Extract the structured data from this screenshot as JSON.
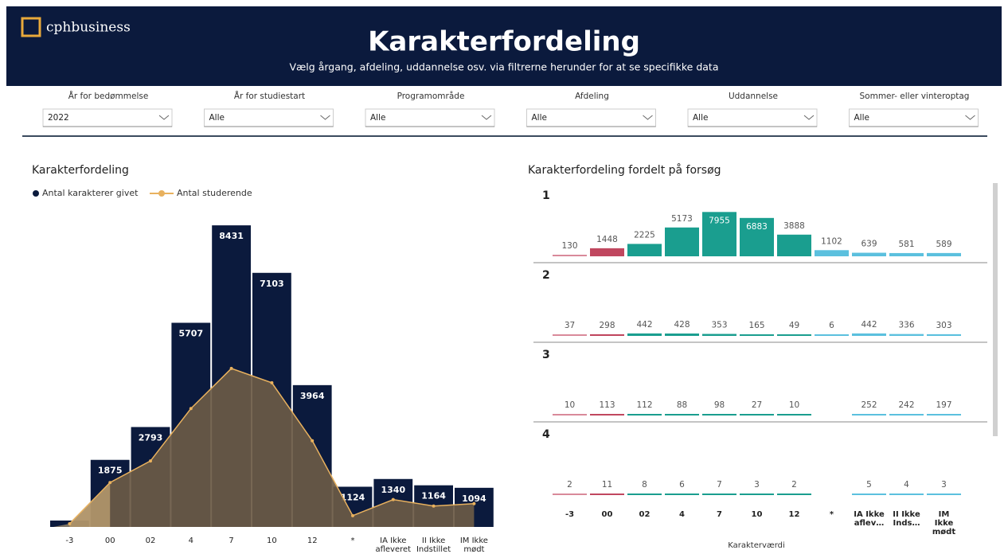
{
  "header": {
    "logo": "cphbusiness",
    "title": "Karakterfordeling",
    "subtitle": "Vælg årgang, afdeling, uddannelse osv. via filtrerne herunder for at se specifikke data"
  },
  "filters": [
    {
      "label": "År for bedømmelse",
      "value": "2022"
    },
    {
      "label": "År for studiestart",
      "value": "Alle"
    },
    {
      "label": "Programområde",
      "value": "Alle"
    },
    {
      "label": "Afdeling",
      "value": "Alle"
    },
    {
      "label": "Uddannelse",
      "value": "Alle"
    },
    {
      "label": "Sommer- eller vinteroptag",
      "value": "Alle"
    }
  ],
  "chart_data": [
    {
      "type": "bar-area",
      "title": "Karakterfordeling",
      "categories": [
        "-3",
        "00",
        "02",
        "4",
        "7",
        "10",
        "12",
        "*",
        "IA Ikke afleveret",
        "II Ikke Indstillet",
        "IM Ikke mødt"
      ],
      "ylim": [
        0,
        8500
      ],
      "series": [
        {
          "name": "Antal karakterer givet",
          "color": "#0b1a3d",
          "values": [
            179,
            1875,
            2793,
            5707,
            8431,
            7103,
            3964,
            1124,
            1340,
            1164,
            1094
          ],
          "value_labels": [
            null,
            "1875",
            "2793",
            "5707",
            "8431",
            "7103",
            "3964",
            "1124",
            "1340",
            "1164",
            "1094"
          ]
        },
        {
          "name": "Antal studerende",
          "color": "#e8b15e",
          "fill": "#6b5a45",
          "values": [
            90,
            1240,
            1845,
            3310,
            4430,
            4030,
            2410,
            315,
            765,
            585,
            650
          ]
        }
      ]
    },
    {
      "type": "small-multiple-bar",
      "title": "Karakterfordeling fordelt på forsøg",
      "x_label": "Karakterværdi",
      "categories": [
        "-3",
        "00",
        "02",
        "4",
        "7",
        "10",
        "12",
        "*",
        "IA Ikke aflev…",
        "II Ikke Inds…",
        "IM Ikke mødt"
      ],
      "colors": [
        "#d98a9a",
        "#c0475f",
        "#1a9e8f",
        "#1a9e8f",
        "#1a9e8f",
        "#1a9e8f",
        "#1a9e8f",
        "#5bc0de",
        "#5bc0de",
        "#5bc0de",
        "#5bc0de"
      ],
      "ylim": [
        0,
        8000
      ],
      "panels": [
        {
          "name": "1",
          "values": [
            130,
            1448,
            2225,
            5173,
            7955,
            6883,
            3888,
            1102,
            639,
            581,
            589
          ]
        },
        {
          "name": "2",
          "values": [
            37,
            298,
            442,
            428,
            353,
            165,
            49,
            6,
            442,
            336,
            303
          ]
        },
        {
          "name": "3",
          "values": [
            10,
            113,
            112,
            88,
            98,
            27,
            10,
            null,
            252,
            242,
            197
          ]
        },
        {
          "name": "4",
          "values": [
            2,
            11,
            8,
            6,
            7,
            3,
            2,
            null,
            5,
            4,
            3
          ]
        }
      ]
    }
  ]
}
